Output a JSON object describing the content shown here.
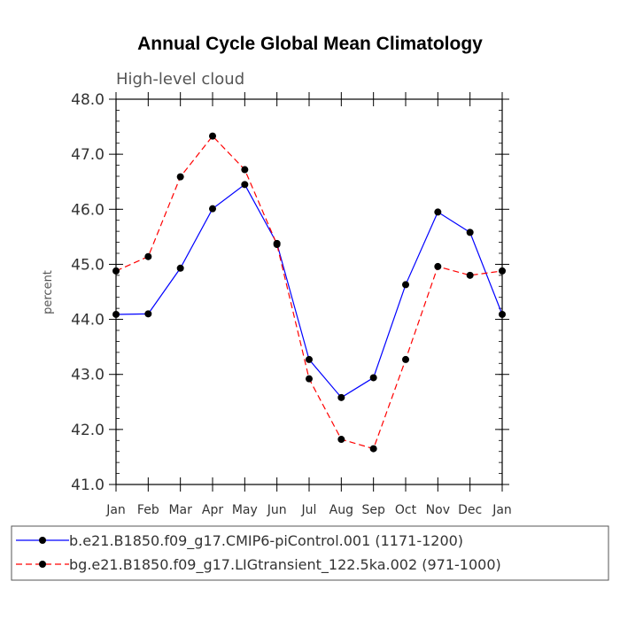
{
  "chart_data": {
    "type": "line",
    "title": "Annual Cycle Global Mean Climatology",
    "subtitle": "High-level cloud",
    "xlabel": "",
    "ylabel": "percent",
    "categories": [
      "Jan",
      "Feb",
      "Mar",
      "Apr",
      "May",
      "Jun",
      "Jul",
      "Aug",
      "Sep",
      "Oct",
      "Nov",
      "Dec",
      "Jan"
    ],
    "ylim": [
      41.0,
      48.0
    ],
    "yticks": [
      "41.0",
      "42.0",
      "43.0",
      "44.0",
      "45.0",
      "46.0",
      "47.0",
      "48.0"
    ],
    "grid": false,
    "legend_position": "bottom",
    "series": [
      {
        "name": "b.e21.B1850.f09_g17.CMIP6-piControl.001 (1171-1200)",
        "color": "#0000ff",
        "dash": "solid",
        "values": [
          44.09,
          44.1,
          44.93,
          46.01,
          46.45,
          45.38,
          43.27,
          42.58,
          42.94,
          44.63,
          45.95,
          45.58,
          44.09
        ]
      },
      {
        "name": "bg.e21.B1850.f09_g17.LIGtransient_122.5ka.002 (971-1000)",
        "color": "#ff0000",
        "dash": "dashed",
        "values": [
          44.88,
          45.14,
          46.59,
          47.33,
          46.72,
          45.36,
          42.92,
          41.82,
          41.65,
          43.27,
          44.96,
          44.8,
          44.88
        ]
      }
    ]
  }
}
